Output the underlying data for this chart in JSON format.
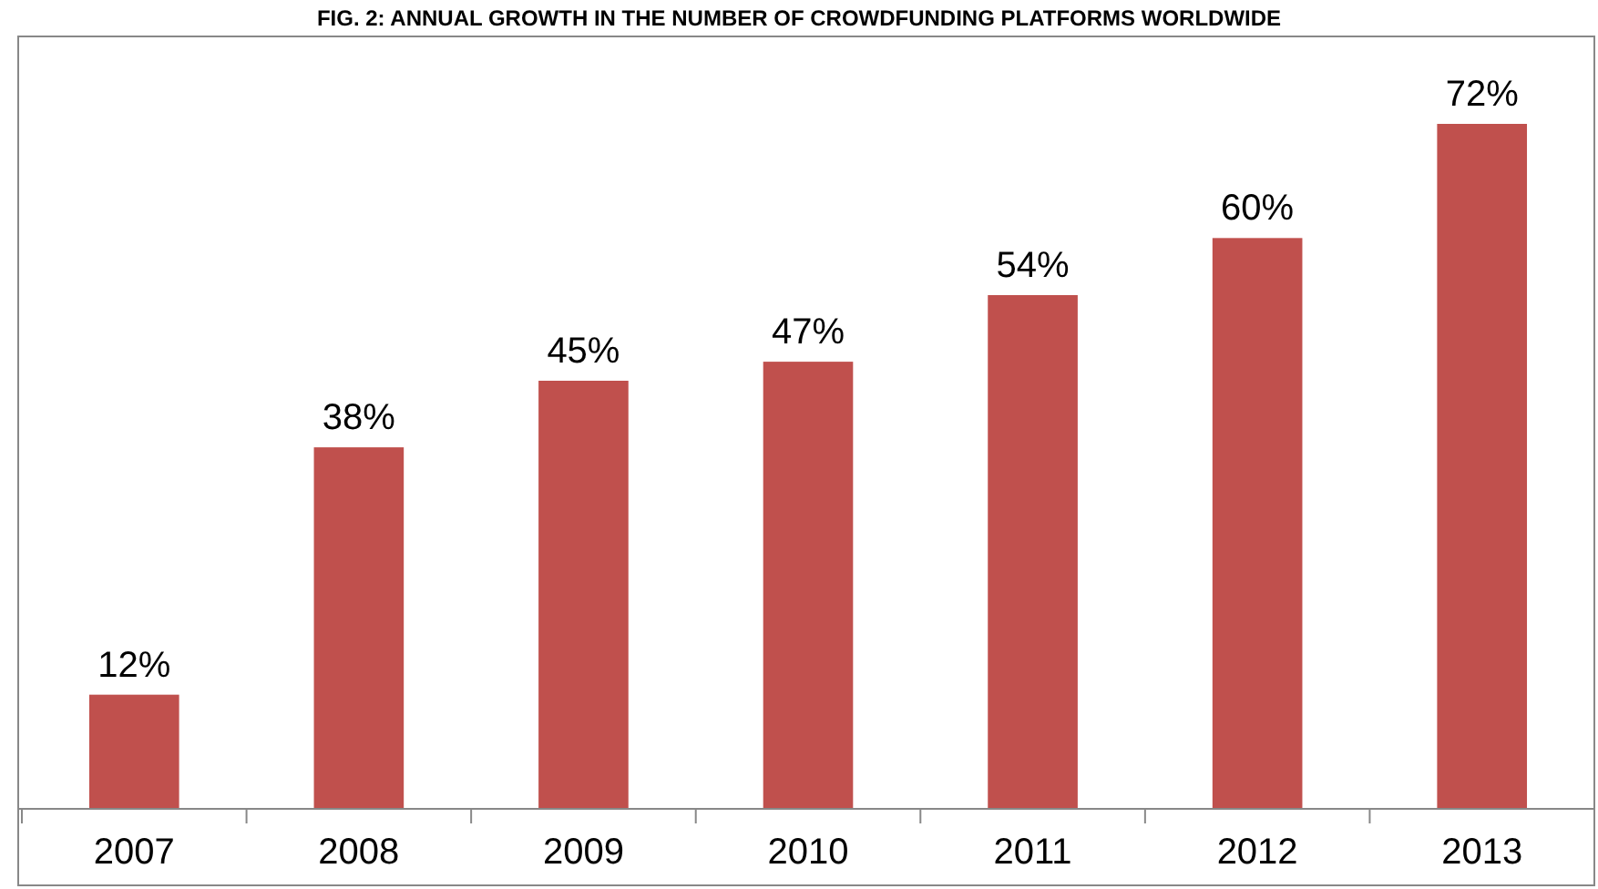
{
  "chart_data": {
    "type": "bar",
    "title": "FIG. 2: ANNUAL GROWTH IN THE NUMBER OF CROWDFUNDING PLATFORMS WORLDWIDE",
    "categories": [
      "2007",
      "2008",
      "2009",
      "2010",
      "2011",
      "2012",
      "2013"
    ],
    "values": [
      12,
      38,
      45,
      47,
      54,
      60,
      72
    ],
    "value_labels": [
      "12%",
      "38%",
      "45%",
      "47%",
      "54%",
      "60%",
      "72%"
    ],
    "color": "#c0504d",
    "grid": false
  }
}
